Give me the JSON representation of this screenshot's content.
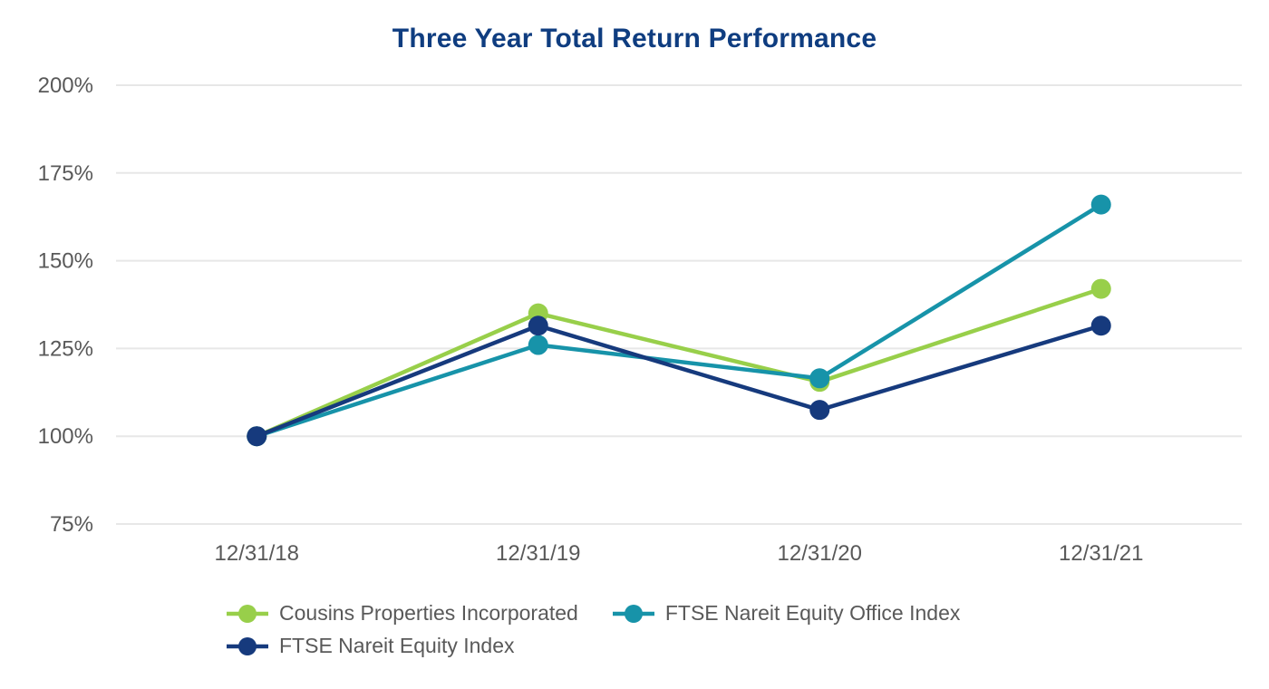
{
  "title": "Three Year Total Return Performance",
  "colors": {
    "title_text": "#0F3D80",
    "axis_text": "#595959",
    "legend_text": "#595959",
    "grid": "#E7E7E7",
    "background": "#FFFFFF",
    "series_green": "#98CF4A",
    "series_teal": "#1793A9",
    "series_navy": "#163A7D"
  },
  "chart_data": {
    "type": "line",
    "title": "Three Year Total Return Performance",
    "categories": [
      "12/31/18",
      "12/31/19",
      "12/31/20",
      "12/31/21"
    ],
    "series": [
      {
        "name": "Cousins Properties Incorporated",
        "color": "#98CF4A",
        "values": [
          100,
          135,
          115.5,
          142
        ]
      },
      {
        "name": "FTSE Nareit Equity Office Index",
        "color": "#1793A9",
        "values": [
          100,
          126,
          116.5,
          166
        ]
      },
      {
        "name": "FTSE Nareit Equity Index",
        "color": "#163A7D",
        "values": [
          100,
          131.5,
          107.5,
          131.5
        ]
      }
    ],
    "y_ticks": [
      "200%",
      "175%",
      "150%",
      "125%",
      "100%",
      "75%"
    ],
    "y_tick_values": [
      200,
      175,
      150,
      125,
      100,
      75
    ],
    "ylim": [
      75,
      200
    ],
    "xlabel": "",
    "ylabel": "",
    "grid": true,
    "legend_position": "bottom",
    "marker": "circle",
    "marker_radius": 11,
    "line_width": 4.5
  }
}
